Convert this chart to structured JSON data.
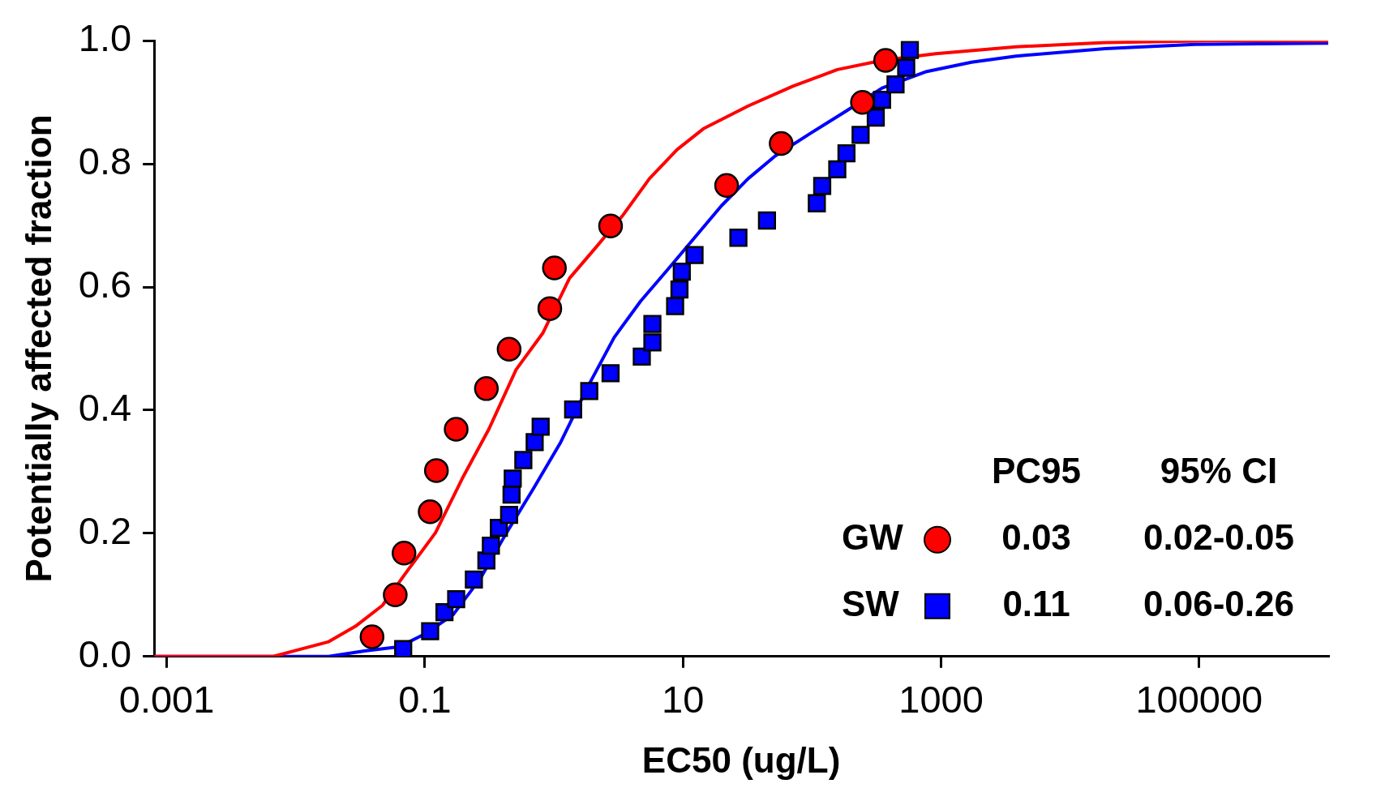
{
  "chart_data": {
    "type": "scatter",
    "xlabel": "EC50 (ug/L)",
    "ylabel": "Potentially affected fraction",
    "log": "x",
    "grid": false,
    "legend": "bottom right",
    "xlim": [
      0.0008,
      1000000
    ],
    "xticks": [
      0.001,
      0.1,
      10,
      1000,
      100000
    ],
    "ylim": [
      0,
      1
    ],
    "yticks": [
      {
        "value": 0,
        "label": "0.0"
      },
      {
        "value": 0.2,
        "label": "0.2"
      },
      {
        "value": 0.4,
        "label": "0.4"
      },
      {
        "value": 0.6,
        "label": "0.6"
      },
      {
        "value": 0.8,
        "label": "0.8"
      },
      {
        "value": 1,
        "label": "1.0"
      }
    ],
    "annotations": [
      "PC95",
      "95% CI",
      "0.03",
      "0.02-0.05",
      "0.11",
      "0.06-0.26"
    ],
    "series": [
      {
        "type": "line",
        "color": "#ff0000",
        "marker": "none",
        "x": [
          0.0008,
          0.0067,
          0.011,
          0.018,
          0.029,
          0.047,
          0.075,
          0.121,
          0.195,
          0.315,
          0.51,
          0.82,
          1.32,
          2.13,
          3.44,
          5.5,
          9.0,
          14.4,
          32,
          71,
          157,
          349,
          908,
          3800,
          18700,
          126000,
          1000000
        ],
        "values": [
          0,
          0,
          0.012,
          0.024,
          0.049,
          0.083,
          0.142,
          0.201,
          0.289,
          0.37,
          0.466,
          0.525,
          0.614,
          0.665,
          0.717,
          0.776,
          0.823,
          0.857,
          0.894,
          0.926,
          0.953,
          0.968,
          0.979,
          0.99,
          0.997,
          1.0,
          1.0
        ]
      },
      {
        "type": "line",
        "color": "#0000ff",
        "marker": "none",
        "x": [
          0.0008,
          0.018,
          0.034,
          0.064,
          0.103,
          0.166,
          0.27,
          0.43,
          0.7,
          1.13,
          1.82,
          2.93,
          4.7,
          7.6,
          12.3,
          19.9,
          32,
          52,
          98,
          185,
          349,
          774,
          1720,
          3800,
          18700,
          93000,
          1000000
        ],
        "values": [
          0,
          0,
          0.009,
          0.016,
          0.038,
          0.068,
          0.127,
          0.201,
          0.274,
          0.348,
          0.437,
          0.518,
          0.577,
          0.628,
          0.68,
          0.732,
          0.776,
          0.813,
          0.85,
          0.886,
          0.923,
          0.95,
          0.965,
          0.975,
          0.987,
          0.994,
          0.996
        ]
      },
      {
        "name": "GW",
        "color": "#ff0000",
        "marker": "circle",
        "x": [
          0.039,
          0.059,
          0.069,
          0.11,
          0.123,
          0.175,
          0.3,
          0.45,
          0.93,
          1.01,
          2.75,
          21.8,
          57.7,
          246,
          372
        ],
        "values": [
          0.032,
          0.1,
          0.168,
          0.235,
          0.302,
          0.369,
          0.435,
          0.499,
          0.565,
          0.631,
          0.699,
          0.765,
          0.833,
          0.9,
          0.968
        ]
      },
      {
        "name": "SW",
        "color": "#0000ff",
        "marker": "square",
        "x": [
          0.068,
          0.11,
          0.142,
          0.175,
          0.24,
          0.3,
          0.325,
          0.375,
          0.45,
          0.47,
          0.48,
          0.58,
          0.71,
          0.79,
          1.41,
          1.88,
          2.75,
          4.8,
          5.8,
          5.8,
          8.7,
          9.4,
          9.8,
          12.3,
          26.9,
          44.8,
          109,
          120,
          157,
          185,
          238,
          312,
          349,
          444,
          537,
          573
        ],
        "values": [
          0.012,
          0.041,
          0.072,
          0.093,
          0.125,
          0.156,
          0.18,
          0.209,
          0.23,
          0.263,
          0.289,
          0.319,
          0.348,
          0.373,
          0.401,
          0.431,
          0.46,
          0.487,
          0.51,
          0.54,
          0.569,
          0.596,
          0.625,
          0.652,
          0.68,
          0.708,
          0.736,
          0.764,
          0.791,
          0.817,
          0.847,
          0.875,
          0.904,
          0.929,
          0.956,
          0.985
        ]
      }
    ]
  }
}
